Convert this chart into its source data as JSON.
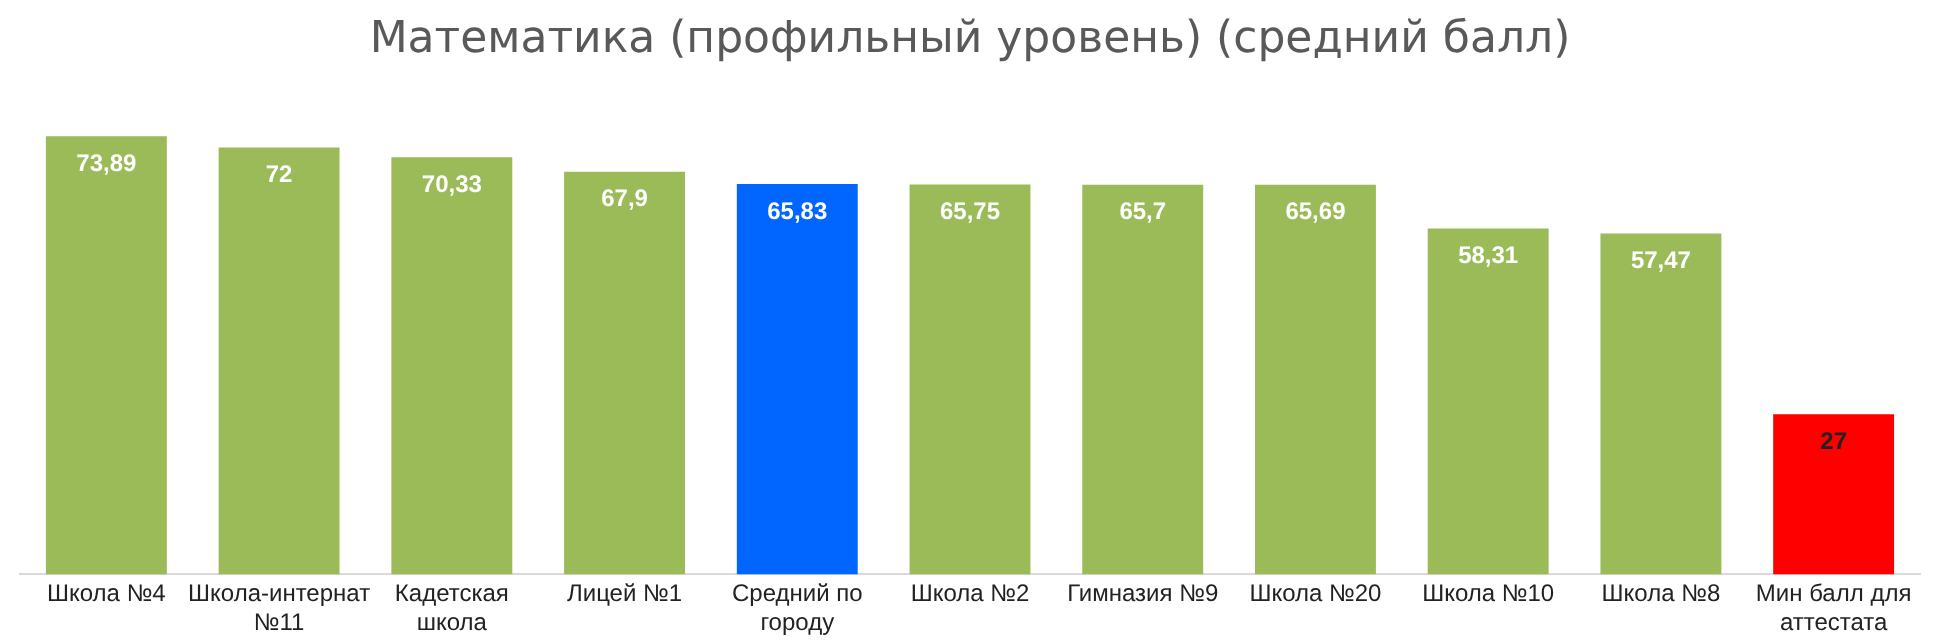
{
  "chart_data": {
    "type": "bar",
    "title": "Математика (профильный уровень) (средний балл)",
    "categories": [
      "Школа №4",
      "Школа-интернат №11",
      "Кадетская школа",
      "Лицей №1",
      "Средний по городу",
      "Школа №2",
      "Гимназия №9",
      "Школа №20",
      "Школа №10",
      "Школа №8",
      "Мин балл для аттестата"
    ],
    "values": [
      73.89,
      72,
      70.33,
      67.9,
      65.83,
      65.75,
      65.7,
      65.69,
      58.31,
      57.47,
      27
    ],
    "colors": [
      "#9bbb59",
      "#9bbb59",
      "#9bbb59",
      "#9bbb59",
      "#0066ff",
      "#9bbb59",
      "#9bbb59",
      "#9bbb59",
      "#9bbb59",
      "#9bbb59",
      "#ff0000"
    ],
    "value_labels": [
      "73,89",
      "72",
      "70,33",
      "67,9",
      "65,83",
      "65,75",
      "65,7",
      "65,69",
      "58,31",
      "57,47",
      "27"
    ],
    "grid": false,
    "legend": false
  }
}
